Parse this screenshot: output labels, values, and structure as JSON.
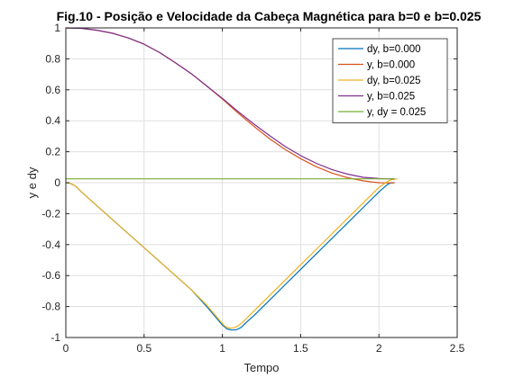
{
  "chart_data": {
    "type": "line",
    "title": "Fig.10 - Posição e Velocidade da Cabeça Magnética para b=0 e b=0.025",
    "xlabel": "Tempo",
    "ylabel": "y e dy",
    "xlim": [
      0,
      2.5
    ],
    "ylim": [
      -1,
      1
    ],
    "xticks": [
      "0",
      "0.5",
      "1",
      "1.5",
      "2",
      "2.5"
    ],
    "yticks": [
      "-1",
      "-0.8",
      "-0.6",
      "-0.4",
      "-0.2",
      "0",
      "0.2",
      "0.4",
      "0.6",
      "0.8",
      "1"
    ],
    "grid": true,
    "legend_position": "top-right",
    "series": [
      {
        "name": "dy, b=0.000",
        "color": "#0072BD",
        "x": [
          0,
          0.03,
          0.06,
          0.1,
          0.15,
          0.2,
          0.3,
          0.4,
          0.5,
          0.6,
          0.7,
          0.8,
          0.9,
          0.95,
          1.0,
          1.03,
          1.06,
          1.09,
          1.12,
          1.15,
          1.2,
          1.3,
          1.4,
          1.5,
          1.6,
          1.7,
          1.8,
          1.9,
          2.0,
          2.05,
          2.07,
          2.1
        ],
        "y": [
          0,
          -0.005,
          -0.02,
          -0.06,
          -0.105,
          -0.15,
          -0.24,
          -0.33,
          -0.42,
          -0.51,
          -0.6,
          -0.69,
          -0.8,
          -0.86,
          -0.92,
          -0.945,
          -0.952,
          -0.95,
          -0.935,
          -0.905,
          -0.86,
          -0.76,
          -0.66,
          -0.56,
          -0.46,
          -0.36,
          -0.26,
          -0.16,
          -0.06,
          -0.015,
          -0.003,
          0
        ]
      },
      {
        "name": "y, b=0.000",
        "color": "#D95319",
        "x": [
          0,
          0.1,
          0.2,
          0.3,
          0.4,
          0.5,
          0.6,
          0.7,
          0.8,
          0.9,
          1.0,
          1.1,
          1.2,
          1.3,
          1.4,
          1.5,
          1.6,
          1.7,
          1.8,
          1.9,
          1.95,
          2.0,
          2.05,
          2.1
        ],
        "y": [
          1.0,
          0.997,
          0.985,
          0.965,
          0.935,
          0.895,
          0.84,
          0.775,
          0.705,
          0.625,
          0.54,
          0.45,
          0.365,
          0.285,
          0.215,
          0.155,
          0.103,
          0.062,
          0.032,
          0.012,
          0.005,
          0.0,
          -0.002,
          0
        ]
      },
      {
        "name": "dy, b=0.025",
        "color": "#EDB120",
        "x": [
          0,
          0.03,
          0.06,
          0.1,
          0.15,
          0.2,
          0.3,
          0.4,
          0.5,
          0.6,
          0.7,
          0.8,
          0.9,
          0.95,
          1.0,
          1.02,
          1.05,
          1.08,
          1.1,
          1.13,
          1.2,
          1.3,
          1.4,
          1.5,
          1.6,
          1.7,
          1.8,
          1.9,
          2.0,
          2.05,
          2.08,
          2.12
        ],
        "y": [
          0,
          -0.005,
          -0.02,
          -0.06,
          -0.105,
          -0.15,
          -0.24,
          -0.33,
          -0.42,
          -0.51,
          -0.6,
          -0.69,
          -0.79,
          -0.85,
          -0.91,
          -0.93,
          -0.94,
          -0.935,
          -0.925,
          -0.9,
          -0.83,
          -0.73,
          -0.63,
          -0.53,
          -0.43,
          -0.33,
          -0.23,
          -0.13,
          -0.03,
          0.005,
          0.02,
          0.025
        ]
      },
      {
        "name": "y, b=0.025",
        "color": "#7E2F8E",
        "x": [
          0,
          0.1,
          0.2,
          0.3,
          0.4,
          0.5,
          0.6,
          0.7,
          0.8,
          0.9,
          1.0,
          1.1,
          1.2,
          1.3,
          1.4,
          1.5,
          1.6,
          1.7,
          1.8,
          1.9,
          2.0,
          2.05,
          2.1
        ],
        "y": [
          1.0,
          0.997,
          0.985,
          0.965,
          0.935,
          0.895,
          0.84,
          0.775,
          0.705,
          0.625,
          0.545,
          0.46,
          0.38,
          0.305,
          0.235,
          0.175,
          0.125,
          0.085,
          0.055,
          0.035,
          0.027,
          0.025,
          0.025
        ]
      },
      {
        "name": "y, dy = 0.025",
        "color": "#77AC30",
        "x": [
          0,
          2.1
        ],
        "y": [
          0.025,
          0.025
        ]
      }
    ]
  }
}
